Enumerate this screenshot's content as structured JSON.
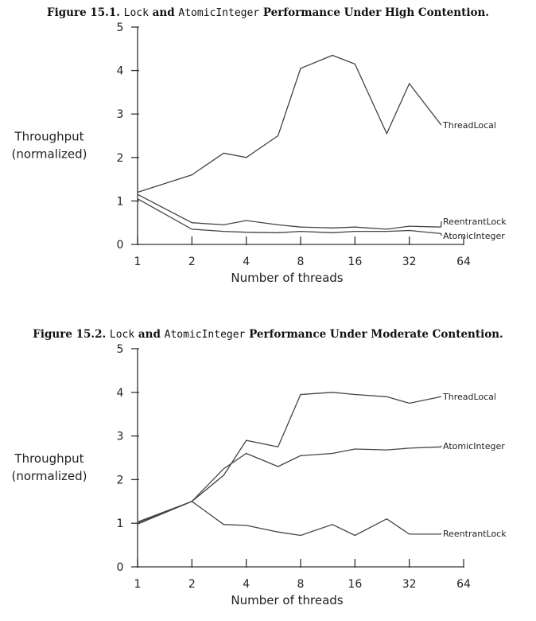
{
  "figures": [
    {
      "number": "Figure 15.1.",
      "title_pre": "Lock",
      "title_and": "and",
      "title_code": "AtomicInteger",
      "title_post": "Performance Under High Contention."
    },
    {
      "number": "Figure 15.2.",
      "title_pre": "Lock",
      "title_and": "and",
      "title_code": "AtomicInteger",
      "title_post": "Performance Under Moderate Contention."
    }
  ],
  "chart_data": [
    {
      "type": "line",
      "xlabel": "Number of threads",
      "ylabel_lines": [
        "Throughput",
        "(normalized)"
      ],
      "x_scale": "log2",
      "ylim": [
        0,
        5
      ],
      "y_ticks": [
        0,
        1,
        2,
        3,
        4,
        5
      ],
      "x_ticks": [
        1,
        2,
        4,
        8,
        16,
        32,
        64
      ],
      "x_tick_labels": [
        "1",
        "2",
        "4",
        "8",
        "16",
        "32",
        "64"
      ],
      "legend_placement": "labels at line ends",
      "series": [
        {
          "name": "ThreadLocal",
          "x": [
            1,
            2,
            3,
            4,
            6,
            8,
            12,
            16,
            24,
            32,
            48
          ],
          "y": [
            1.2,
            1.6,
            2.1,
            2.0,
            2.5,
            4.05,
            4.35,
            4.15,
            2.55,
            3.7,
            2.75
          ]
        },
        {
          "name": "ReentrantLock",
          "x": [
            1,
            2,
            3,
            4,
            6,
            8,
            12,
            16,
            24,
            32,
            48
          ],
          "y": [
            1.15,
            0.5,
            0.45,
            0.55,
            0.45,
            0.4,
            0.38,
            0.4,
            0.35,
            0.42,
            0.4
          ]
        },
        {
          "name": "AtomicInteger",
          "x": [
            1,
            2,
            3,
            4,
            6,
            8,
            12,
            16,
            24,
            32,
            48
          ],
          "y": [
            1.05,
            0.35,
            0.3,
            0.28,
            0.27,
            0.3,
            0.27,
            0.3,
            0.3,
            0.32,
            0.25
          ]
        }
      ]
    },
    {
      "type": "line",
      "xlabel": "Number of threads",
      "ylabel_lines": [
        "Throughput",
        "(normalized)"
      ],
      "x_scale": "log2",
      "ylim": [
        0,
        5
      ],
      "y_ticks": [
        0,
        1,
        2,
        3,
        4,
        5
      ],
      "x_ticks": [
        1,
        2,
        4,
        8,
        16,
        32,
        64
      ],
      "x_tick_labels": [
        "1",
        "2",
        "4",
        "8",
        "16",
        "32",
        "64"
      ],
      "legend_placement": "labels at line ends",
      "series": [
        {
          "name": "ThreadLocal",
          "x": [
            1,
            2,
            3,
            4,
            6,
            8,
            12,
            16,
            24,
            32,
            48
          ],
          "y": [
            1.0,
            1.5,
            2.1,
            2.9,
            2.75,
            3.95,
            4.0,
            3.95,
            3.9,
            3.75,
            3.9
          ]
        },
        {
          "name": "AtomicInteger",
          "x": [
            1,
            2,
            3,
            4,
            6,
            8,
            12,
            16,
            24,
            32,
            48
          ],
          "y": [
            1.03,
            1.5,
            2.25,
            2.6,
            2.3,
            2.55,
            2.6,
            2.7,
            2.68,
            2.72,
            2.75
          ]
        },
        {
          "name": "ReentrantLock",
          "x": [
            1,
            2,
            3,
            4,
            6,
            8,
            12,
            16,
            24,
            32,
            48
          ],
          "y": [
            0.98,
            1.5,
            0.97,
            0.95,
            0.8,
            0.72,
            0.97,
            0.72,
            1.1,
            0.75,
            0.75
          ]
        }
      ]
    }
  ]
}
